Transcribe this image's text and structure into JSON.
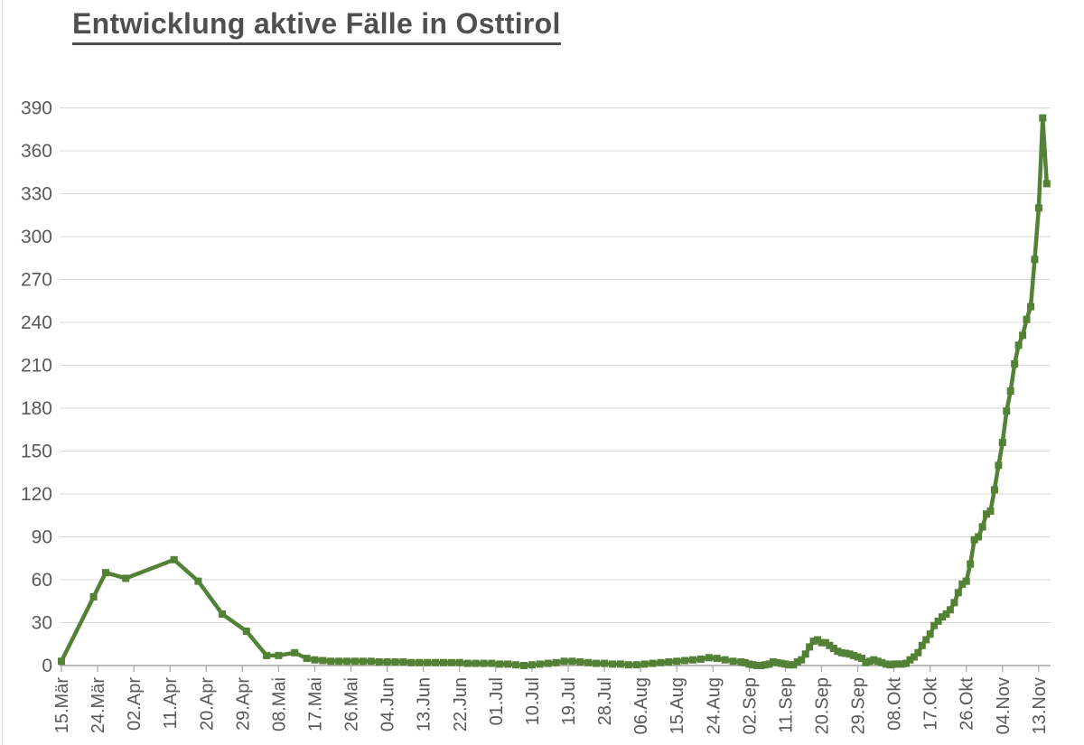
{
  "chart_data": {
    "type": "line",
    "title": "Entwicklung aktive Fälle in Osttirol",
    "xlabel": "",
    "ylabel": "",
    "ylim": [
      0,
      390
    ],
    "y_tick_step": 30,
    "y_ticks": [
      0,
      30,
      60,
      90,
      120,
      150,
      180,
      210,
      240,
      270,
      300,
      330,
      360,
      390
    ],
    "x_tick_interval_days": 9,
    "x_tick_labels": [
      "15.Mär",
      "24.Mär",
      "02.Apr",
      "11.Apr",
      "20.Apr",
      "29.Apr",
      "08.Mai",
      "17.Mai",
      "26.Mai",
      "04.Jun",
      "13.Jun",
      "22.Jun",
      "01.Jul",
      "10.Jul",
      "19.Jul",
      "28.Jul",
      "06.Aug",
      "15.Aug",
      "24.Aug",
      "02.Sep",
      "11.Sep",
      "20.Sep",
      "29.Sep",
      "08.Okt",
      "17.Okt",
      "26.Okt",
      "04.Nov",
      "13.Nov"
    ],
    "grid": "horizontal-only",
    "legend_position": "none",
    "marker": "square",
    "points_day_value": [
      [
        0,
        3
      ],
      [
        8,
        48
      ],
      [
        11,
        65
      ],
      [
        16,
        61
      ],
      [
        28,
        74
      ],
      [
        34,
        59
      ],
      [
        40,
        36
      ],
      [
        46,
        24
      ],
      [
        51,
        7
      ],
      [
        54,
        7
      ],
      [
        58,
        9
      ],
      [
        61,
        5
      ],
      [
        63,
        4
      ],
      [
        65,
        3.5
      ],
      [
        67,
        3
      ],
      [
        69,
        3
      ],
      [
        71,
        3
      ],
      [
        73,
        3
      ],
      [
        75,
        3
      ],
      [
        77,
        3
      ],
      [
        79,
        2.5
      ],
      [
        81,
        2.5
      ],
      [
        83,
        2.5
      ],
      [
        85,
        2.5
      ],
      [
        87,
        2
      ],
      [
        89,
        2
      ],
      [
        91,
        2
      ],
      [
        93,
        2
      ],
      [
        95,
        2
      ],
      [
        97,
        2
      ],
      [
        99,
        2
      ],
      [
        101,
        1.5
      ],
      [
        103,
        1.5
      ],
      [
        105,
        1.5
      ],
      [
        107,
        1.5
      ],
      [
        109,
        1
      ],
      [
        111,
        1
      ],
      [
        113,
        0.5
      ],
      [
        115,
        0
      ],
      [
        117,
        0.5
      ],
      [
        119,
        1
      ],
      [
        121,
        1.5
      ],
      [
        123,
        2
      ],
      [
        125,
        3
      ],
      [
        127,
        3
      ],
      [
        129,
        2.5
      ],
      [
        131,
        2
      ],
      [
        133,
        1.5
      ],
      [
        135,
        1.5
      ],
      [
        137,
        1
      ],
      [
        139,
        1
      ],
      [
        141,
        0.5
      ],
      [
        143,
        0.5
      ],
      [
        145,
        1
      ],
      [
        147,
        1.5
      ],
      [
        149,
        2
      ],
      [
        151,
        2.5
      ],
      [
        153,
        3
      ],
      [
        155,
        3.5
      ],
      [
        157,
        4
      ],
      [
        159,
        4.5
      ],
      [
        161,
        5.5
      ],
      [
        163,
        5
      ],
      [
        165,
        4
      ],
      [
        167,
        3
      ],
      [
        169,
        2.5
      ],
      [
        170,
        2
      ],
      [
        171,
        1
      ],
      [
        172,
        0.5
      ],
      [
        173,
        0
      ],
      [
        174,
        0
      ],
      [
        175,
        0.5
      ],
      [
        176,
        1
      ],
      [
        177,
        2.5
      ],
      [
        178,
        2
      ],
      [
        179,
        1.5
      ],
      [
        180,
        1
      ],
      [
        181,
        0.5
      ],
      [
        182,
        0.5
      ],
      [
        183,
        2.5
      ],
      [
        184,
        4
      ],
      [
        185,
        8
      ],
      [
        186,
        13
      ],
      [
        187,
        17
      ],
      [
        188,
        18
      ],
      [
        189,
        16
      ],
      [
        190,
        16
      ],
      [
        191,
        14
      ],
      [
        192,
        12
      ],
      [
        193,
        10
      ],
      [
        194,
        9
      ],
      [
        195,
        8.5
      ],
      [
        196,
        8
      ],
      [
        197,
        7
      ],
      [
        198,
        6
      ],
      [
        199,
        5
      ],
      [
        200,
        2
      ],
      [
        201,
        3
      ],
      [
        202,
        4
      ],
      [
        203,
        3
      ],
      [
        204,
        2
      ],
      [
        205,
        1
      ],
      [
        206,
        0.5
      ],
      [
        207,
        1
      ],
      [
        208,
        1
      ],
      [
        209,
        1
      ],
      [
        210,
        1.5
      ],
      [
        211,
        4
      ],
      [
        212,
        6
      ],
      [
        213,
        9
      ],
      [
        214,
        14
      ],
      [
        215,
        18
      ],
      [
        216,
        22
      ],
      [
        217,
        28
      ],
      [
        218,
        31
      ],
      [
        219,
        34
      ],
      [
        220,
        36
      ],
      [
        221,
        39
      ],
      [
        222,
        44
      ],
      [
        223,
        51
      ],
      [
        224,
        57
      ],
      [
        225,
        59
      ],
      [
        226,
        71
      ],
      [
        227,
        88
      ],
      [
        228,
        90
      ],
      [
        229,
        97
      ],
      [
        230,
        106
      ],
      [
        231,
        108
      ],
      [
        232,
        123
      ],
      [
        233,
        140
      ],
      [
        234,
        156
      ],
      [
        235,
        178
      ],
      [
        236,
        192
      ],
      [
        237,
        211
      ],
      [
        238,
        224
      ],
      [
        239,
        231
      ],
      [
        240,
        242
      ],
      [
        241,
        251
      ],
      [
        242,
        284
      ],
      [
        243,
        320
      ],
      [
        244,
        383
      ],
      [
        245,
        337
      ]
    ],
    "colors": {
      "line": "#538135",
      "marker": "#538135",
      "grid": "#d9d9d9",
      "axis": "#a6a6a6",
      "tick_text": "#595959",
      "title_text": "#4f4f4f",
      "background": "#ffffff"
    }
  }
}
